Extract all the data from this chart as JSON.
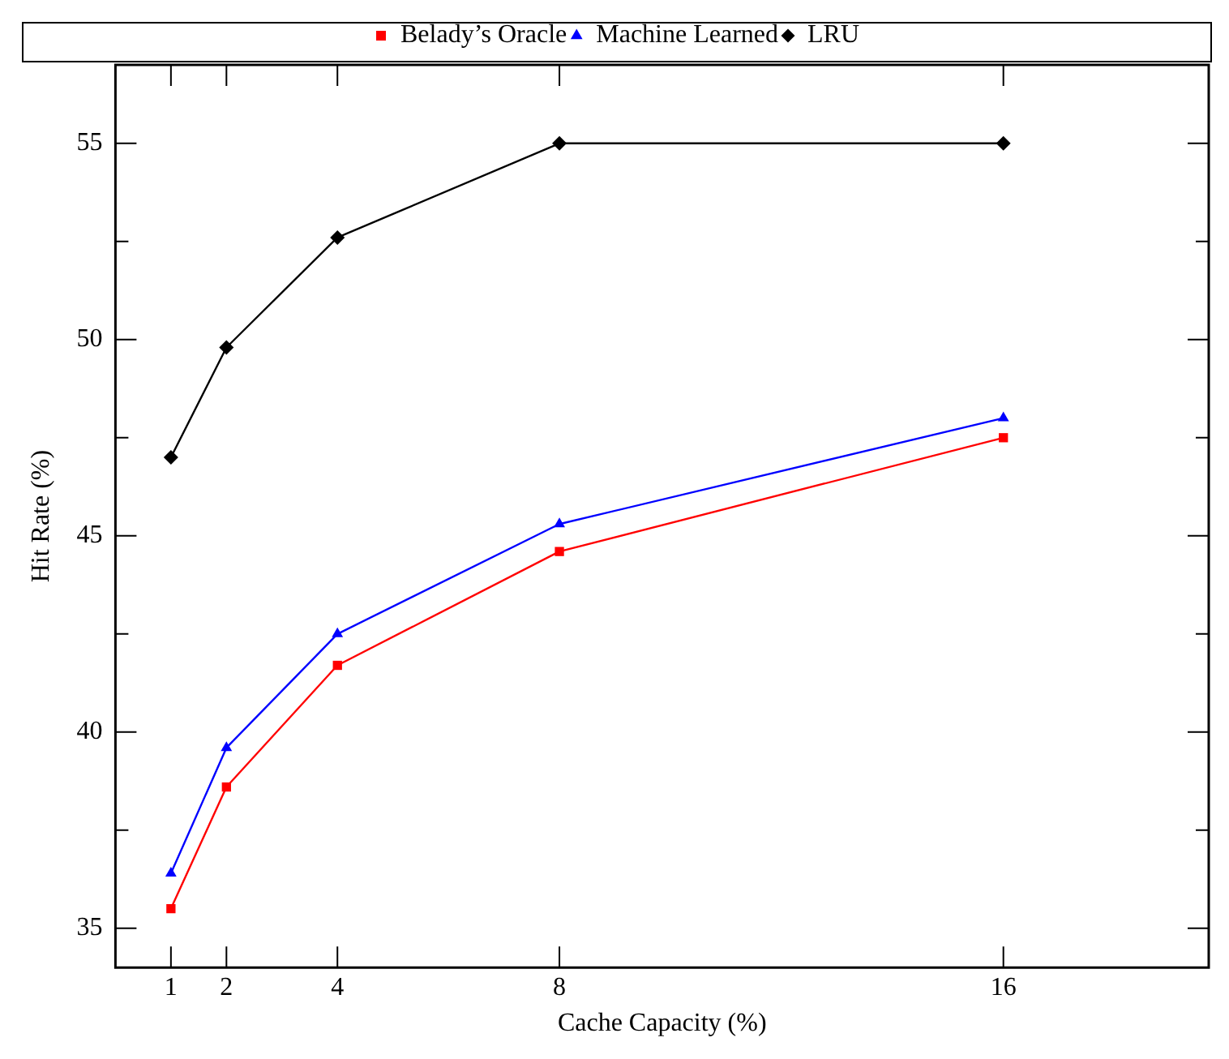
{
  "chart_data": {
    "type": "line",
    "xlabel": "Cache Capacity (%)",
    "ylabel": "Hit Rate (%)",
    "x": [
      1,
      2,
      4,
      8,
      16
    ],
    "series": [
      {
        "name": "Belady’s Oracle",
        "color": "#ff0000",
        "marker": "square",
        "values": [
          35.5,
          38.6,
          41.7,
          44.6,
          47.5
        ]
      },
      {
        "name": "Machine Learned",
        "color": "#0000ff",
        "marker": "triangle",
        "values": [
          36.4,
          39.6,
          42.5,
          45.3,
          48.0
        ]
      },
      {
        "name": "LRU",
        "color": "#000000",
        "marker": "diamond",
        "values": [
          47.0,
          49.8,
          52.6,
          55,
          55
        ]
      }
    ],
    "xlim": [
      0,
      19.7
    ],
    "xticks": [
      1,
      2,
      4,
      8,
      16
    ],
    "ylim": [
      34,
      57
    ],
    "yticks": [
      35,
      {
        "value": 37.5,
        "label": null
      },
      40,
      {
        "value": 42.5,
        "label": null
      },
      45,
      {
        "value": 47.5,
        "label": null
      },
      50,
      {
        "value": 52.5,
        "label": null
      },
      55
    ],
    "legend": "top",
    "line_style": "solid"
  }
}
